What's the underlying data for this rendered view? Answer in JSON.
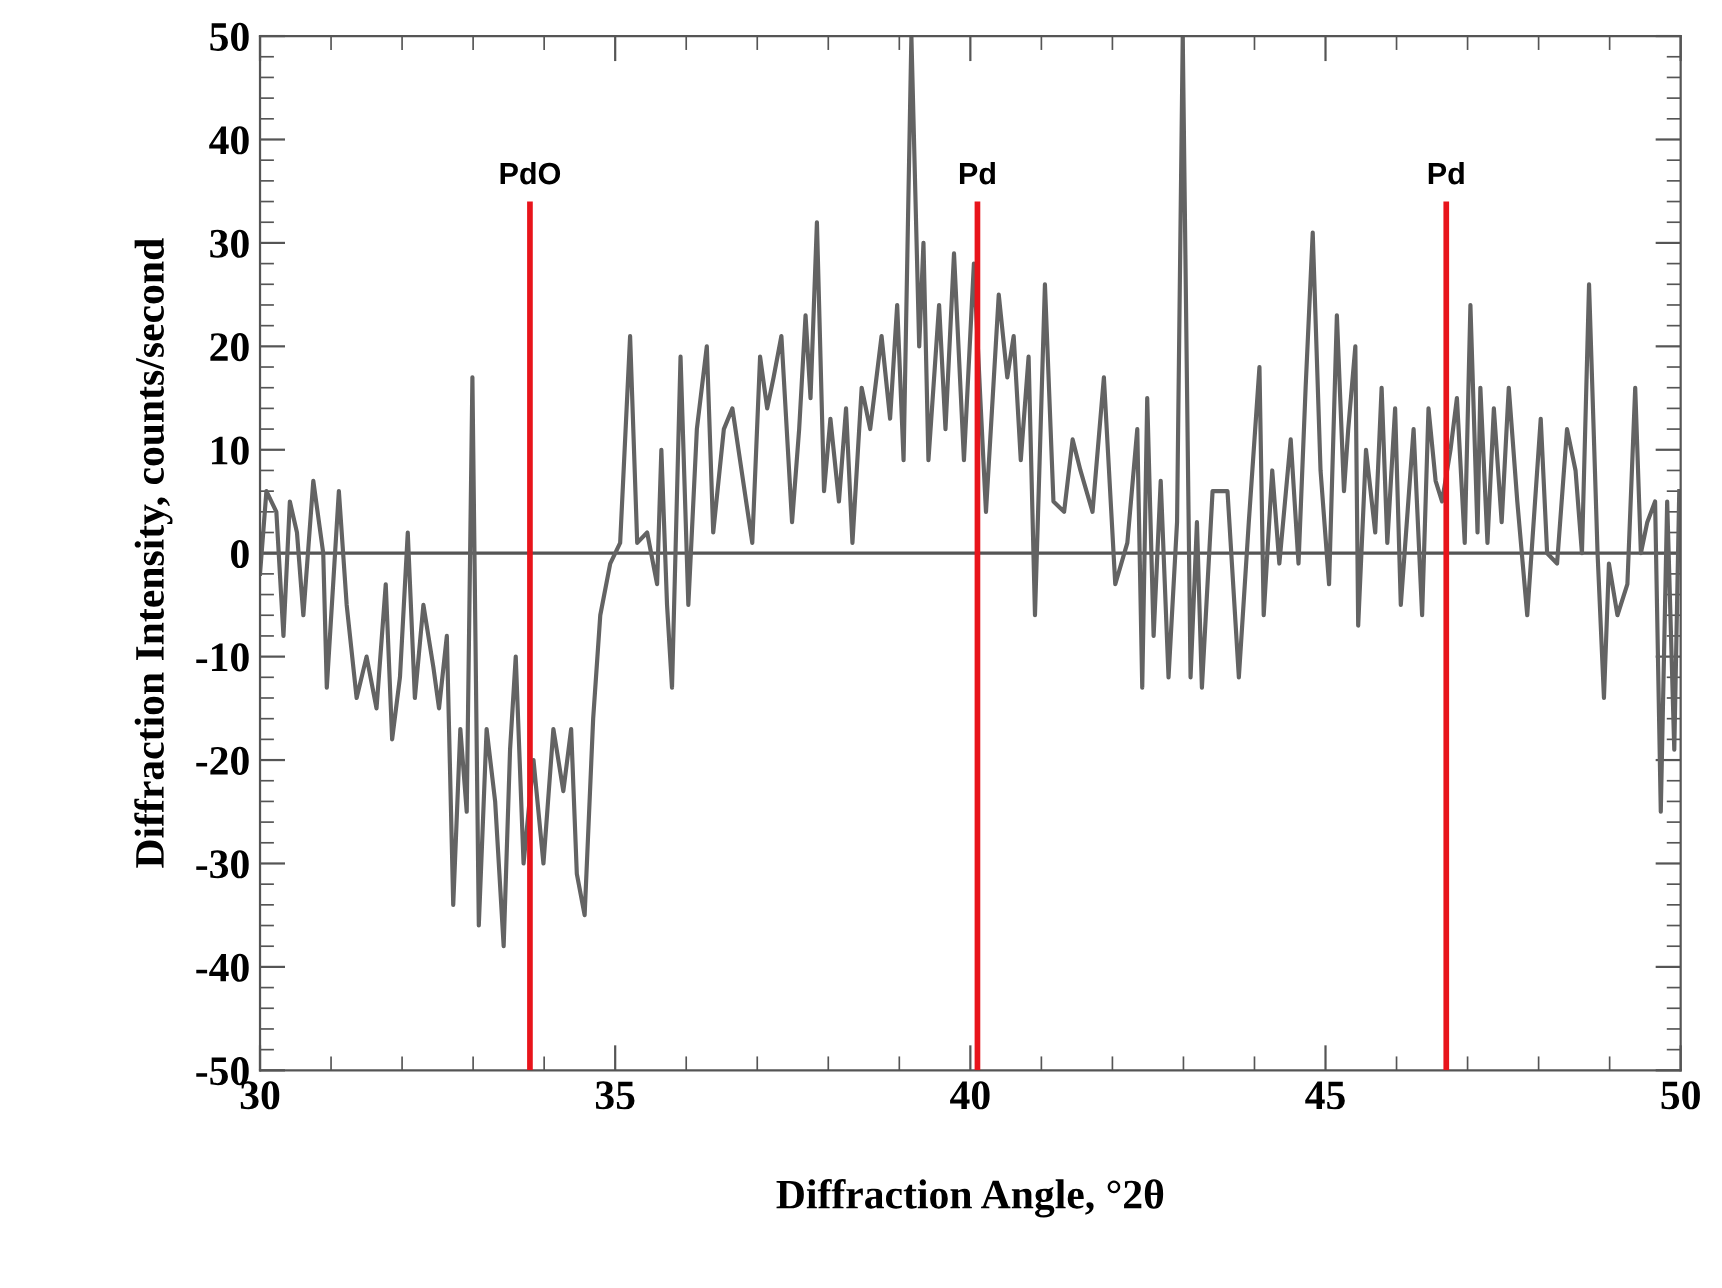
{
  "chart_data": {
    "type": "line",
    "xlabel": "Diffraction Angle, °2θ",
    "ylabel": "Diffraction Intensity, counts/second",
    "xlim": [
      30,
      50
    ],
    "xticks": [
      30,
      35,
      40,
      45,
      50
    ],
    "ylim": [
      -50,
      50
    ],
    "yticks": [
      -50,
      -40,
      -30,
      -20,
      -10,
      0,
      10,
      20,
      30,
      40,
      50
    ],
    "grid": false,
    "legend": false,
    "series": [
      {
        "color": "#636363",
        "x": [
          30.0,
          30.09,
          30.23,
          30.33,
          30.42,
          30.52,
          30.61,
          30.75,
          30.89,
          30.94,
          31.11,
          31.22,
          31.36,
          31.5,
          31.64,
          31.77,
          31.86,
          31.97,
          32.08,
          32.18,
          32.3,
          32.44,
          32.52,
          32.63,
          32.72,
          32.82,
          32.91,
          32.99,
          33.08,
          33.19,
          33.31,
          33.43,
          33.52,
          33.6,
          33.71,
          33.85,
          33.99,
          34.13,
          34.27,
          34.38,
          34.46,
          34.57,
          34.69,
          34.79,
          34.93,
          35.07,
          35.21,
          35.31,
          35.45,
          35.59,
          35.65,
          35.73,
          35.8,
          35.92,
          36.03,
          36.15,
          36.29,
          36.38,
          36.53,
          36.65,
          36.93,
          37.04,
          37.14,
          37.23,
          37.34,
          37.49,
          37.59,
          37.68,
          37.75,
          37.84,
          37.94,
          38.03,
          38.15,
          38.25,
          38.34,
          38.47,
          38.59,
          38.75,
          38.87,
          38.97,
          39.06,
          39.17,
          39.28,
          39.34,
          39.41,
          39.56,
          39.65,
          39.77,
          39.91,
          40.05,
          40.14,
          40.22,
          40.4,
          40.52,
          40.61,
          40.71,
          40.82,
          40.91,
          41.05,
          41.17,
          41.32,
          41.44,
          41.55,
          41.72,
          41.88,
          42.04,
          42.21,
          42.35,
          42.42,
          42.49,
          42.58,
          42.68,
          42.79,
          42.91,
          42.99,
          43.1,
          43.19,
          43.26,
          43.41,
          43.62,
          43.78,
          43.92,
          44.07,
          44.13,
          44.25,
          44.35,
          44.51,
          44.62,
          44.72,
          44.82,
          44.93,
          45.05,
          45.16,
          45.26,
          45.32,
          45.42,
          45.46,
          45.57,
          45.7,
          45.79,
          45.87,
          45.98,
          46.06,
          46.24,
          46.36,
          46.45,
          46.55,
          46.64,
          46.76,
          46.85,
          46.96,
          47.04,
          47.14,
          47.18,
          47.28,
          47.37,
          47.48,
          47.58,
          47.7,
          47.84,
          48.03,
          48.12,
          48.26,
          48.4,
          48.52,
          48.61,
          48.71,
          48.83,
          48.92,
          48.99,
          49.11,
          49.25,
          49.36,
          49.44,
          49.53,
          49.64,
          49.72,
          49.81,
          49.91,
          49.98
        ],
        "values": [
          -2,
          6,
          4,
          -8,
          5,
          2,
          -6,
          7,
          0,
          -13,
          6,
          -5,
          -14,
          -10,
          -15,
          -3,
          -18,
          -12,
          2,
          -14,
          -5,
          -11,
          -15,
          -8,
          -34,
          -17,
          -25,
          17,
          -36,
          -17,
          -24,
          -38,
          -19,
          -10,
          -30,
          -20,
          -30,
          -17,
          -23,
          -17,
          -31,
          -35,
          -16,
          -6,
          -1,
          1,
          21,
          1,
          2,
          -3,
          10,
          -5,
          -13,
          19,
          -5,
          12,
          20,
          2,
          12,
          14,
          1,
          19,
          14,
          17,
          21,
          3,
          12,
          23,
          15,
          32,
          6,
          13,
          5,
          14,
          1,
          16,
          12,
          21,
          13,
          24,
          9,
          50,
          20,
          30,
          9,
          24,
          12,
          29,
          9,
          28,
          15,
          4,
          25,
          17,
          21,
          9,
          19,
          -6,
          26,
          5,
          4,
          11,
          8,
          4,
          17,
          -3,
          1,
          12,
          -13,
          15,
          -8,
          7,
          -12,
          3,
          50,
          -12,
          3,
          -13,
          6,
          6,
          -12,
          3,
          18,
          -6,
          8,
          -1,
          11,
          -1,
          16,
          31,
          8,
          -3,
          23,
          6,
          12,
          20,
          -7,
          10,
          2,
          16,
          1,
          14,
          -5,
          12,
          -6,
          14,
          7,
          5,
          10,
          15,
          1,
          24,
          2,
          16,
          1,
          14,
          3,
          16,
          5,
          -6,
          13,
          0,
          -1,
          12,
          8,
          0,
          26,
          0,
          -14,
          -1,
          -6,
          -3,
          16,
          0,
          3,
          5,
          -25,
          5,
          -19,
          6
        ]
      },
      {
        "type": "bar",
        "color": "#e8141b",
        "x": [
          33.8,
          40.1,
          46.7
        ],
        "base": [
          -50,
          -50,
          -50
        ],
        "values": [
          84,
          84,
          84
        ]
      }
    ],
    "ref_lines": [
      {
        "axis": "y",
        "value": 0,
        "color": "#555555"
      }
    ],
    "annotations": [
      {
        "text": "PdO",
        "x": 33.8,
        "y": 34
      },
      {
        "text": "Pd",
        "x": 40.1,
        "y": 34
      },
      {
        "text": "Pd",
        "x": 46.7,
        "y": 34
      }
    ]
  }
}
